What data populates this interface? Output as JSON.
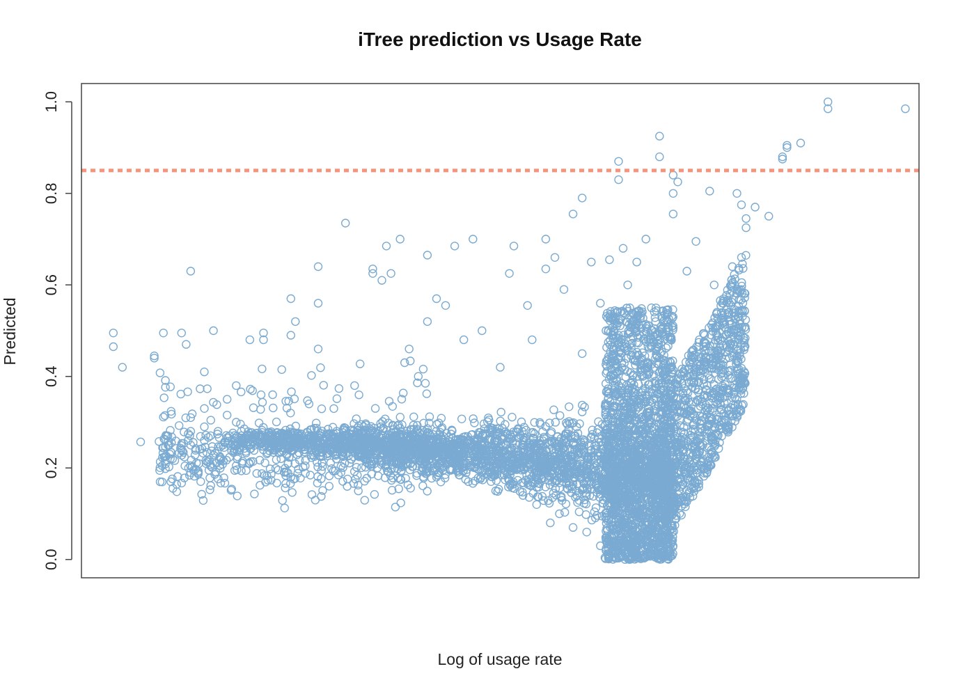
{
  "colors": {
    "points": "#7aaad1",
    "threshold": "#f4947a",
    "axis": "#444444",
    "text": "#111111",
    "background": "#ffffff"
  },
  "chart_data": {
    "type": "scatter",
    "title": "iTree prediction vs Usage Rate",
    "xlabel": "Log of usage rate",
    "ylabel": "Predicted",
    "ylim": [
      -0.04,
      1.04
    ],
    "xlim": [
      -5.2,
      13.2
    ],
    "y_ticks": [
      "0.0",
      "0.2",
      "0.4",
      "0.6",
      "0.8",
      "1.0"
    ],
    "x_ticks": [],
    "marker": "open-circle",
    "reference_lines": [
      {
        "orientation": "horizontal",
        "y": 0.85,
        "style": "dashed"
      }
    ],
    "series": [
      {
        "points": [
          [
            -4.5,
            0.495
          ],
          [
            -4.5,
            0.465
          ],
          [
            -4.3,
            0.42
          ],
          [
            -3.9,
            0.257
          ],
          [
            -3.6,
            0.445
          ],
          [
            -3.6,
            0.44
          ],
          [
            -3.4,
            0.495
          ],
          [
            -3.3,
            0.27
          ],
          [
            -3.3,
            0.25
          ],
          [
            -3.2,
            0.22
          ],
          [
            -3.0,
            0.495
          ],
          [
            -2.9,
            0.47
          ],
          [
            -2.8,
            0.63
          ],
          [
            -2.8,
            0.31
          ],
          [
            -2.8,
            0.28
          ],
          [
            -2.8,
            0.25
          ],
          [
            -2.8,
            0.19
          ],
          [
            -2.5,
            0.41
          ],
          [
            -2.5,
            0.33
          ],
          [
            -2.5,
            0.29
          ],
          [
            -2.5,
            0.26
          ],
          [
            -2.3,
            0.5
          ],
          [
            -2.2,
            0.28
          ],
          [
            -2.0,
            0.35
          ],
          [
            -1.8,
            0.38
          ],
          [
            -1.8,
            0.3
          ],
          [
            -1.8,
            0.205
          ],
          [
            -1.5,
            0.48
          ],
          [
            -1.2,
            0.48
          ],
          [
            -1.2,
            0.495
          ],
          [
            -0.8,
            0.415
          ],
          [
            -0.6,
            0.57
          ],
          [
            -0.6,
            0.49
          ],
          [
            -0.6,
            0.18
          ],
          [
            -0.5,
            0.52
          ],
          [
            0.0,
            0.64
          ],
          [
            0.0,
            0.56
          ],
          [
            0.0,
            0.46
          ],
          [
            0.6,
            0.735
          ],
          [
            0.5,
            0.19
          ],
          [
            1.0,
            0.29
          ],
          [
            1.2,
            0.635
          ],
          [
            1.2,
            0.625
          ],
          [
            1.4,
            0.61
          ],
          [
            1.6,
            0.625
          ],
          [
            1.5,
            0.685
          ],
          [
            1.8,
            0.7
          ],
          [
            1.9,
            0.43
          ],
          [
            2.4,
            0.665
          ],
          [
            2.4,
            0.52
          ],
          [
            2.6,
            0.57
          ],
          [
            2.8,
            0.555
          ],
          [
            3.0,
            0.685
          ],
          [
            3.4,
            0.7
          ],
          [
            3.6,
            0.5
          ],
          [
            4.2,
            0.625
          ],
          [
            4.3,
            0.685
          ],
          [
            4.6,
            0.555
          ],
          [
            4.7,
            0.48
          ],
          [
            5.0,
            0.7
          ],
          [
            5.0,
            0.635
          ],
          [
            5.2,
            0.66
          ],
          [
            5.6,
            0.755
          ],
          [
            5.8,
            0.79
          ],
          [
            6.0,
            0.65
          ],
          [
            6.4,
            0.655
          ],
          [
            6.6,
            0.87
          ],
          [
            6.6,
            0.83
          ],
          [
            6.7,
            0.68
          ],
          [
            6.8,
            0.6
          ],
          [
            7.0,
            0.65
          ],
          [
            7.2,
            0.7
          ],
          [
            7.5,
            0.925
          ],
          [
            7.5,
            0.88
          ],
          [
            7.8,
            0.84
          ],
          [
            7.8,
            0.8
          ],
          [
            7.9,
            0.825
          ],
          [
            7.8,
            0.755
          ],
          [
            8.6,
            0.805
          ],
          [
            9.2,
            0.8
          ],
          [
            9.3,
            0.775
          ],
          [
            9.4,
            0.745
          ],
          [
            9.6,
            0.77
          ],
          [
            9.4,
            0.725
          ],
          [
            9.9,
            0.75
          ],
          [
            10.2,
            0.88
          ],
          [
            10.2,
            0.875
          ],
          [
            10.3,
            0.9
          ],
          [
            10.3,
            0.905
          ],
          [
            10.6,
            0.91
          ],
          [
            11.2,
            1.0
          ],
          [
            11.2,
            0.985
          ],
          [
            12.9,
            0.985
          ],
          [
            9.1,
            0.64
          ],
          [
            9.3,
            0.66
          ],
          [
            8.3,
            0.695
          ],
          [
            6.9,
            0.52
          ],
          [
            5.8,
            0.45
          ],
          [
            4.0,
            0.42
          ],
          [
            2.2,
            0.4
          ],
          [
            0.8,
            0.38
          ],
          [
            -0.2,
            0.34
          ],
          [
            -1.0,
            0.36
          ],
          [
            2.0,
            0.46
          ],
          [
            3.2,
            0.48
          ],
          [
            6.2,
            0.56
          ],
          [
            5.4,
            0.59
          ],
          [
            8.7,
            0.6
          ],
          [
            8.1,
            0.63
          ],
          [
            8.9,
            0.56
          ],
          [
            3.9,
            0.15
          ],
          [
            4.8,
            0.12
          ],
          [
            5.3,
            0.1
          ],
          [
            5.9,
            0.06
          ],
          [
            6.2,
            0.03
          ],
          [
            6.9,
            0.015
          ],
          [
            7.2,
            0.01
          ],
          [
            7.4,
            0.005
          ],
          [
            7.6,
            0.04
          ],
          [
            7.7,
            0.09
          ],
          [
            1.3,
            0.2
          ],
          [
            0.4,
            0.22
          ],
          [
            -0.3,
            0.235
          ],
          [
            2.6,
            0.18
          ],
          [
            3.3,
            0.17
          ],
          [
            4.5,
            0.14
          ],
          [
            5.1,
            0.08
          ],
          [
            5.6,
            0.07
          ]
        ]
      }
    ]
  }
}
